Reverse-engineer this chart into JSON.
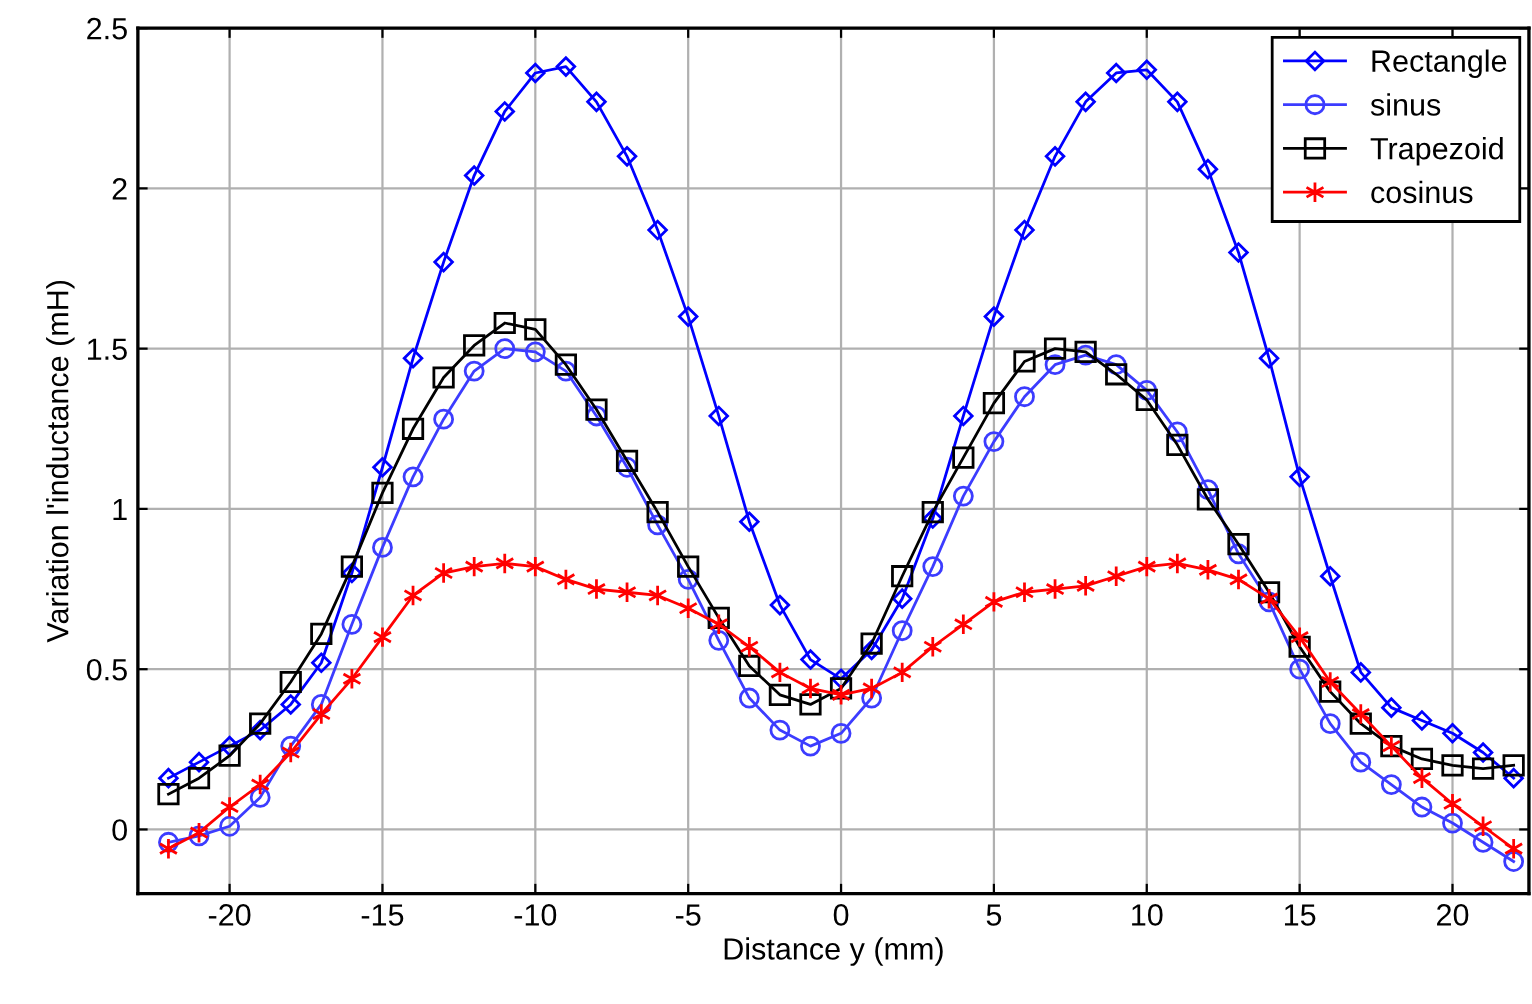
{
  "chart_data": {
    "type": "line",
    "xlabel": "Distance y (mm)",
    "ylabel": "Variation l'inductance (mH)",
    "x": [
      -22,
      -21,
      -20,
      -19,
      -18,
      -17,
      -16,
      -15,
      -14,
      -13,
      -12,
      -11,
      -10,
      -9,
      -8,
      -7,
      -6,
      -5,
      -4,
      -3,
      -2,
      -1,
      0,
      1,
      2,
      3,
      4,
      5,
      6,
      7,
      8,
      9,
      10,
      11,
      12,
      13,
      14,
      15,
      16,
      17,
      18,
      19,
      20,
      21,
      22
    ],
    "series": [
      {
        "name": "Rectangle",
        "color": "#0000ff",
        "marker": "diamond",
        "values": [
          0.16,
          0.21,
          0.26,
          0.31,
          0.39,
          0.52,
          0.8,
          1.13,
          1.47,
          1.77,
          2.04,
          2.24,
          2.36,
          2.38,
          2.27,
          2.1,
          1.87,
          1.6,
          1.29,
          0.96,
          0.7,
          0.53,
          0.47,
          0.56,
          0.72,
          0.97,
          1.29,
          1.6,
          1.87,
          2.1,
          2.27,
          2.36,
          2.37,
          2.27,
          2.06,
          1.8,
          1.47,
          1.1,
          0.79,
          0.49,
          0.38,
          0.34,
          0.3,
          0.24,
          0.16
        ]
      },
      {
        "name": "sinus",
        "color": "#3c3cff",
        "marker": "circle",
        "values": [
          -0.04,
          -0.02,
          0.01,
          0.1,
          0.26,
          0.39,
          0.64,
          0.88,
          1.1,
          1.28,
          1.43,
          1.5,
          1.49,
          1.43,
          1.29,
          1.13,
          0.95,
          0.78,
          0.59,
          0.41,
          0.31,
          0.26,
          0.3,
          0.41,
          0.62,
          0.82,
          1.04,
          1.21,
          1.35,
          1.45,
          1.48,
          1.45,
          1.37,
          1.24,
          1.06,
          0.86,
          0.71,
          0.5,
          0.33,
          0.21,
          0.14,
          0.07,
          0.02,
          -0.04,
          -0.1
        ]
      },
      {
        "name": "Trapezoid",
        "color": "#000000",
        "marker": "square",
        "values": [
          0.11,
          0.16,
          0.23,
          0.33,
          0.46,
          0.61,
          0.82,
          1.05,
          1.25,
          1.41,
          1.51,
          1.58,
          1.56,
          1.45,
          1.31,
          1.15,
          0.99,
          0.82,
          0.66,
          0.51,
          0.42,
          0.39,
          0.44,
          0.58,
          0.79,
          0.99,
          1.16,
          1.33,
          1.46,
          1.5,
          1.49,
          1.42,
          1.34,
          1.2,
          1.03,
          0.89,
          0.74,
          0.57,
          0.43,
          0.33,
          0.26,
          0.22,
          0.2,
          0.19,
          0.2
        ]
      },
      {
        "name": "cosinus",
        "color": "#ff0000",
        "marker": "cross",
        "values": [
          -0.06,
          -0.01,
          0.07,
          0.14,
          0.24,
          0.36,
          0.47,
          0.6,
          0.73,
          0.8,
          0.82,
          0.83,
          0.82,
          0.78,
          0.75,
          0.74,
          0.73,
          0.69,
          0.64,
          0.57,
          0.49,
          0.44,
          0.42,
          0.44,
          0.49,
          0.57,
          0.64,
          0.71,
          0.74,
          0.75,
          0.76,
          0.79,
          0.82,
          0.83,
          0.81,
          0.78,
          0.72,
          0.6,
          0.46,
          0.36,
          0.26,
          0.16,
          0.08,
          0.01,
          -0.06
        ]
      }
    ],
    "xlim": [
      -23,
      22.5
    ],
    "ylim": [
      -0.2,
      2.5
    ],
    "xticks": [
      -20,
      -15,
      -10,
      -5,
      0,
      5,
      10,
      15,
      20
    ],
    "yticks": [
      0,
      0.5,
      1,
      1.5,
      2,
      2.5
    ],
    "grid": true,
    "legend": "top right"
  }
}
